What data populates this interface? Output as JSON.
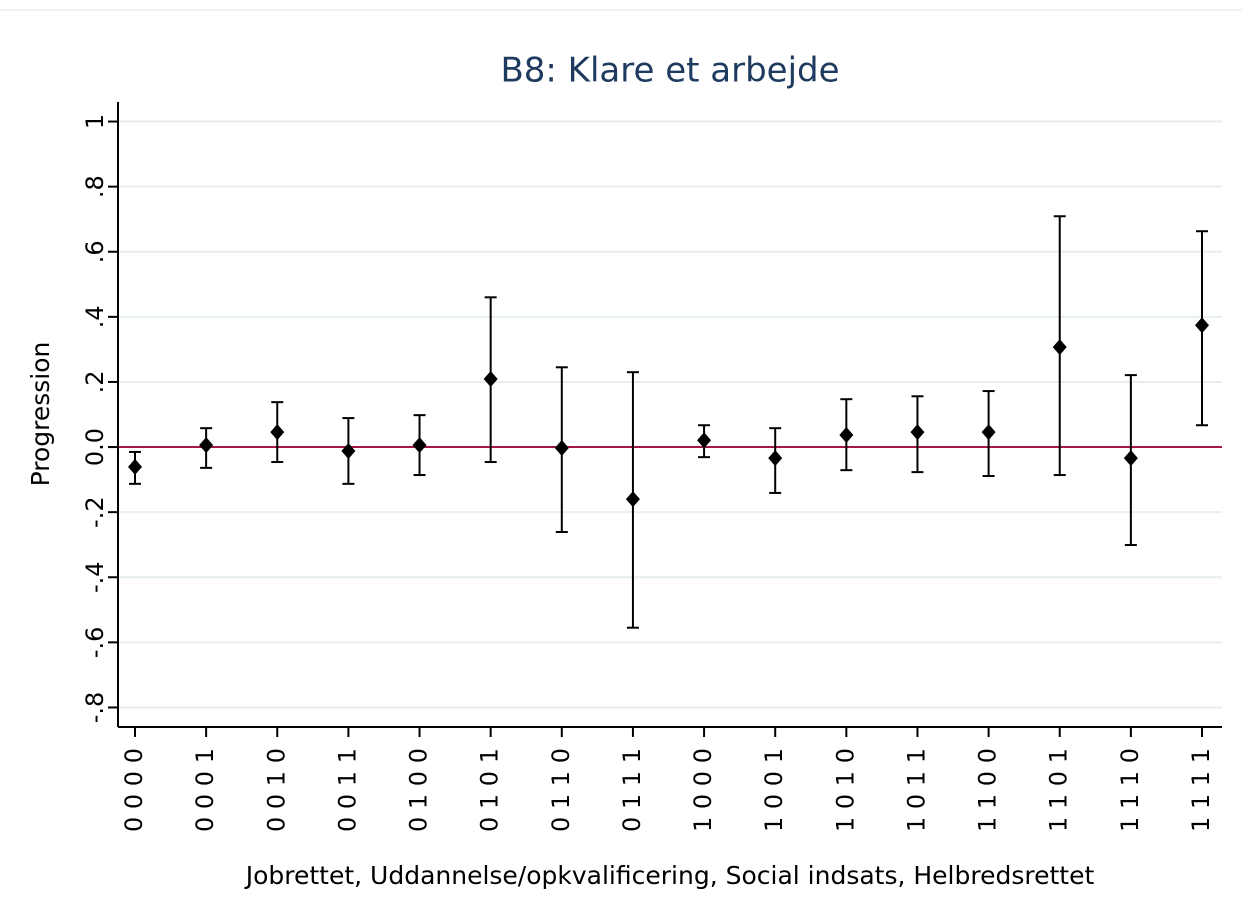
{
  "chart_data": {
    "type": "errorbar",
    "title": "B8: Klare et arbejde",
    "xlabel": "Jobrettet, Uddannelse/opkvalificering, Social indsats, Helbredsrettet",
    "ylabel": "Progression",
    "categories": [
      "0 0 0 0",
      "0 0 0 1",
      "0 0 1 0",
      "0 0 1 1",
      "0 1 0 0",
      "0 1 0 1",
      "0 1 1 0",
      "0 1 1 1",
      "1 0 0 0",
      "1 0 0 1",
      "1 0 1 0",
      "1 0 1 1",
      "1 1 0 0",
      "1 1 0 1",
      "1 1 1 0",
      "1 1 1 1"
    ],
    "values": [
      -0.061,
      0.006,
      0.046,
      -0.012,
      0.006,
      0.209,
      -0.003,
      -0.16,
      0.021,
      -0.034,
      0.037,
      0.046,
      0.046,
      0.307,
      -0.034,
      0.374
    ],
    "lower": [
      -0.113,
      -0.064,
      -0.046,
      -0.113,
      -0.086,
      -0.046,
      -0.261,
      -0.555,
      -0.031,
      -0.141,
      -0.071,
      -0.077,
      -0.089,
      -0.086,
      -0.301,
      0.067
    ],
    "upper": [
      -0.015,
      0.058,
      0.138,
      0.089,
      0.098,
      0.46,
      0.245,
      0.23,
      0.067,
      0.058,
      0.147,
      0.156,
      0.172,
      0.709,
      0.221,
      0.663
    ],
    "color": "#000000",
    "hline": {
      "value": 0,
      "color": "#a3174a"
    },
    "ylim": [
      -0.86,
      1.06
    ],
    "yticks": [
      1,
      {
        "value": 0.8,
        "label": ".8"
      },
      {
        "value": 0.6,
        "label": ".6"
      },
      {
        "value": 0.4,
        "label": ".4"
      },
      {
        "value": 0.2,
        "label": ".2"
      },
      {
        "value": 0,
        "label": "0.0"
      },
      {
        "value": -0.2,
        "label": "-.2"
      },
      {
        "value": -0.4,
        "label": "-.4"
      },
      {
        "value": -0.6,
        "label": "-.6"
      },
      {
        "value": -0.8,
        "label": "-.8"
      }
    ],
    "grid": true
  }
}
